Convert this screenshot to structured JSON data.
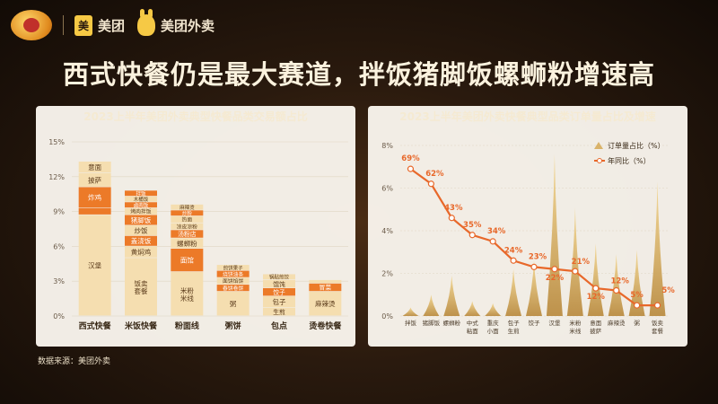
{
  "header": {
    "brand1": "美团",
    "brand2": "美团外卖",
    "headline": "西式快餐仍是最大赛道，拌饭猪脚饭螺蛳粉增速高"
  },
  "source": "数据来源：美团外卖",
  "colors": {
    "cream": "#f5deb0",
    "orange": "#ec7a28",
    "gold_peak": "#d9b36a",
    "line": "#e8682a"
  },
  "chart_data": [
    {
      "type": "bar",
      "stacked": true,
      "title": "2023上半年美团外卖典型快餐品类交易额占比",
      "ytick_labels": [
        "0%",
        "3%",
        "6%",
        "9%",
        "12%",
        "15%"
      ],
      "ylim": [
        0,
        15
      ],
      "categories": [
        "西式快餐",
        "米饭快餐",
        "粉面线",
        "粥饼",
        "包点",
        "烫卷快餐"
      ],
      "stacks": [
        {
          "category": "西式快餐",
          "segments": [
            {
              "label": "汉堡",
              "value": 8.7,
              "color": "cream"
            },
            {
              "label": "",
              "value": 0.6,
              "color": "orange"
            },
            {
              "label": "炸鸡",
              "value": 1.8,
              "color": "orange"
            },
            {
              "label": "披萨",
              "value": 1.2,
              "color": "cream"
            },
            {
              "label": "意面",
              "value": 1.0,
              "color": "cream"
            }
          ]
        },
        {
          "category": "米饭快餐",
          "segments": [
            {
              "label": "饭卖套餐",
              "value": 5.0,
              "color": "cream"
            },
            {
              "label": "黄焖鸡",
              "value": 1.0,
              "color": "cream"
            },
            {
              "label": "盖浇饭",
              "value": 0.9,
              "color": "orange"
            },
            {
              "label": "炒饭",
              "value": 0.9,
              "color": "cream"
            },
            {
              "label": "猪脚饭",
              "value": 0.9,
              "color": "orange"
            },
            {
              "label": "烤肉拌饭",
              "value": 0.6,
              "color": "cream"
            },
            {
              "label": "卤肉饭",
              "value": 0.5,
              "color": "orange"
            },
            {
              "label": "木桶饭",
              "value": 0.5,
              "color": "cream"
            },
            {
              "label": "拌饭",
              "value": 0.5,
              "color": "orange"
            }
          ]
        },
        {
          "category": "粉面线",
          "segments": [
            {
              "label": "米粉米线",
              "value": 3.8,
              "color": "cream"
            },
            {
              "label": "面馆",
              "value": 2.0,
              "color": "orange"
            },
            {
              "label": "螺蛳粉",
              "value": 0.9,
              "color": "cream"
            },
            {
              "label": "汤粉店",
              "value": 0.7,
              "color": "orange"
            },
            {
              "label": "凉皮凉粉",
              "value": 0.6,
              "color": "cream"
            },
            {
              "label": "热面",
              "value": 0.6,
              "color": "cream"
            },
            {
              "label": "炒粉",
              "value": 0.5,
              "color": "orange"
            },
            {
              "label": "麻辣烫",
              "value": 0.5,
              "color": "cream"
            }
          ]
        },
        {
          "category": "粥饼",
          "segments": [
            {
              "label": "粥",
              "value": 2.1,
              "color": "cream"
            },
            {
              "label": "春饼卷饼",
              "value": 0.6,
              "color": "orange"
            },
            {
              "label": "面饼馅饼",
              "value": 0.6,
              "color": "cream"
            },
            {
              "label": "烧饼油条",
              "value": 0.6,
              "color": "orange"
            },
            {
              "label": "煎饼果子",
              "value": 0.5,
              "color": "cream"
            }
          ]
        },
        {
          "category": "包点",
          "segments": [
            {
              "label": "生煎",
              "value": 0.7,
              "color": "cream"
            },
            {
              "label": "包子",
              "value": 1.0,
              "color": "cream"
            },
            {
              "label": "饺子",
              "value": 0.7,
              "color": "orange"
            },
            {
              "label": "馄饨",
              "value": 0.7,
              "color": "cream"
            },
            {
              "label": "锅贴煎饺",
              "value": 0.5,
              "color": "cream"
            }
          ]
        },
        {
          "category": "烫卷快餐",
          "segments": [
            {
              "label": "麻辣烫",
              "value": 2.1,
              "color": "cream"
            },
            {
              "label": "冒菜",
              "value": 0.7,
              "color": "orange"
            },
            {
              "label": "",
              "value": 0.3,
              "color": "cream"
            }
          ]
        }
      ]
    },
    {
      "type": "line",
      "title": "2023上半年美团外卖快餐典型品类订单量占比及增速",
      "ytick_labels": [
        "0%",
        "2%",
        "4%",
        "6%",
        "8%"
      ],
      "ylim": [
        0,
        8
      ],
      "legend": [
        "订单量占比（%）",
        "年同比（%）"
      ],
      "legend_position": "top-right",
      "categories": [
        "拌饭",
        "猪脚饭",
        "螺蛳粉",
        "中式粘面",
        "重庆小面",
        "包子生煎",
        "饺子",
        "汉堡",
        "米粉米线",
        "意面披萨",
        "麻辣烫",
        "粥",
        "饭卖套餐"
      ],
      "order_share": [
        0.4,
        1.0,
        1.9,
        0.7,
        0.6,
        2.2,
        2.6,
        7.6,
        5.1,
        3.4,
        2.9,
        3.1,
        6.3
      ],
      "yoy_labels": [
        "69%",
        "62%",
        "43%",
        "35%",
        "34%",
        "24%",
        "23%",
        "22%",
        "21%",
        "12%",
        "12%",
        "5%",
        "5%"
      ],
      "yoy_positions": [
        6.9,
        6.2,
        4.6,
        3.8,
        3.5,
        2.6,
        2.3,
        2.2,
        2.1,
        1.3,
        1.2,
        0.5,
        0.5
      ]
    }
  ]
}
